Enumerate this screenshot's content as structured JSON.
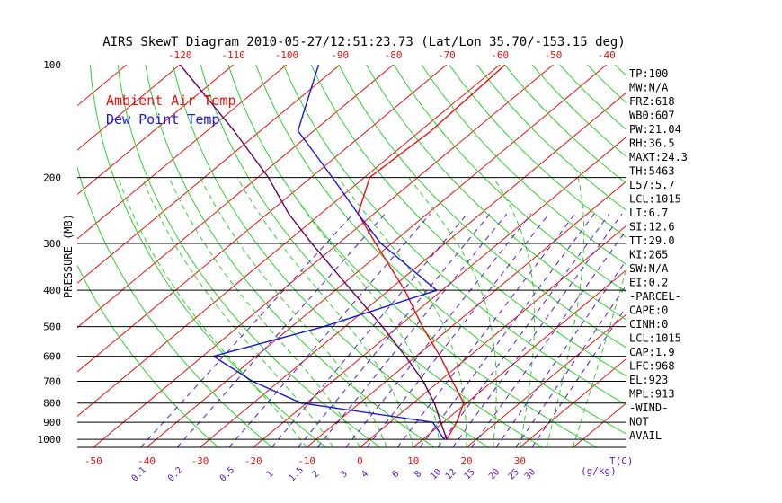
{
  "chart_data": {
    "type": "line",
    "subtype": "skew-t log-p diagram",
    "title": "AIRS SkewT Diagram 2010-05-27/12:51:23.73 (Lat/Lon 35.70/-153.15 deg)",
    "ylabel": "PRESSURE (MB)",
    "x_unit_label": "T(C)",
    "mixing_ratio_unit_label": "(g/kg)",
    "y_scale": "log",
    "ylim": [
      1050,
      100
    ],
    "bottom_temperature_range": [
      -53,
      50
    ],
    "grid": true,
    "pressure_ticks": [
      100,
      200,
      300,
      400,
      500,
      600,
      700,
      800,
      900,
      1000
    ],
    "pressure_tick_labels": [
      "100",
      "200",
      "300",
      "400",
      "500",
      "600",
      "700",
      "800",
      "900",
      "1000"
    ],
    "bottom_temp_ticks": [
      -50,
      -40,
      -30,
      -20,
      -10,
      0,
      10,
      20,
      30
    ],
    "bottom_temp_tick_labels": [
      "-50",
      "-40",
      "-30",
      "-20",
      "-10",
      "0",
      "10",
      "20",
      "30"
    ],
    "top_temp_ticks": [
      -120,
      -110,
      -100,
      -90,
      -80,
      -70,
      -60,
      -50,
      -40
    ],
    "top_temp_tick_labels": [
      "-120",
      "-110",
      "-100",
      "-90",
      "-80",
      "-70",
      "-60",
      "-50",
      "-40"
    ],
    "mixing_ratio_ticks": [
      0.1,
      0.2,
      0.5,
      1,
      1.5,
      2,
      3,
      4,
      6,
      8,
      10,
      12,
      15,
      20,
      25,
      30
    ],
    "mixing_ratio_tick_labels": [
      "0.1",
      "0.2",
      "0.5",
      "1",
      "1.5",
      "2",
      "3",
      "4",
      "6",
      "8",
      "10",
      "12",
      "15",
      "20",
      "25",
      "30"
    ],
    "legend_position": "top-left",
    "legend": [
      {
        "name": "Ambient Air Temp",
        "color": "#e8120f"
      },
      {
        "name": "Dew Point Temp",
        "color": "#1818d8"
      }
    ],
    "series": [
      {
        "name": "Ambient Air Temp",
        "color": "#e8120f",
        "points": [
          {
            "p": 1000,
            "t": 14.5
          },
          {
            "p": 900,
            "t": 12.5
          },
          {
            "p": 800,
            "t": 9.5
          },
          {
            "p": 700,
            "t": 2.5
          },
          {
            "p": 600,
            "t": -5.5
          },
          {
            "p": 500,
            "t": -15.5
          },
          {
            "p": 400,
            "t": -27
          },
          {
            "p": 300,
            "t": -43
          },
          {
            "p": 250,
            "t": -53
          },
          {
            "p": 200,
            "t": -59
          },
          {
            "p": 150,
            "t": -58
          },
          {
            "p": 100,
            "t": -59
          }
        ]
      },
      {
        "name": "Dew Point Temp",
        "color": "#1818d8",
        "points": [
          {
            "p": 1000,
            "t": 14
          },
          {
            "p": 900,
            "t": 8
          },
          {
            "p": 800,
            "t": -21
          },
          {
            "p": 700,
            "t": -35
          },
          {
            "p": 600,
            "t": -48
          },
          {
            "p": 500,
            "t": -34
          },
          {
            "p": 400,
            "t": -21
          },
          {
            "p": 300,
            "t": -42
          },
          {
            "p": 250,
            "t": -53
          },
          {
            "p": 200,
            "t": -66
          },
          {
            "p": 150,
            "t": -83
          },
          {
            "p": 100,
            "t": -94
          }
        ]
      },
      {
        "name": "parcel",
        "color": "#660066",
        "points": [
          {
            "p": 1000,
            "t": 14.5
          },
          {
            "p": 900,
            "t": 9.5
          },
          {
            "p": 800,
            "t": 4
          },
          {
            "p": 700,
            "t": -3
          },
          {
            "p": 600,
            "t": -12
          },
          {
            "p": 500,
            "t": -23
          },
          {
            "p": 400,
            "t": -37
          },
          {
            "p": 300,
            "t": -55
          },
          {
            "p": 250,
            "t": -66
          },
          {
            "p": 200,
            "t": -78
          },
          {
            "p": 150,
            "t": -95
          },
          {
            "p": 100,
            "t": -120
          }
        ]
      }
    ]
  },
  "indices": [
    "TP:100",
    "MW:N/A",
    "FRZ:618",
    "WB0:607",
    "PW:21.04",
    "RH:36.5",
    "MAXT:24.3",
    "TH:5463",
    "L57:5.7",
    "LCL:1015",
    "LI:6.7",
    "SI:12.6",
    "TT:29.0",
    "KI:265",
    "SW:N/A",
    "EI:0.2",
    "-PARCEL-",
    "CAPE:0",
    "CINH:0",
    "LCL:1015",
    "CAP:1.9",
    "LFC:968",
    "EL:923",
    "MPL:913",
    "-WIND-",
    "NOT",
    "AVAIL"
  ],
  "colors": {
    "temp_lines": "#e8120f",
    "dry_adiabats": "#2fd02f",
    "moist_adiabats": "#2fd02f",
    "mixing_lines": "#5a18c8",
    "dewpoint": "#1818d8",
    "parcel": "#660066",
    "isobar": "#000000"
  }
}
